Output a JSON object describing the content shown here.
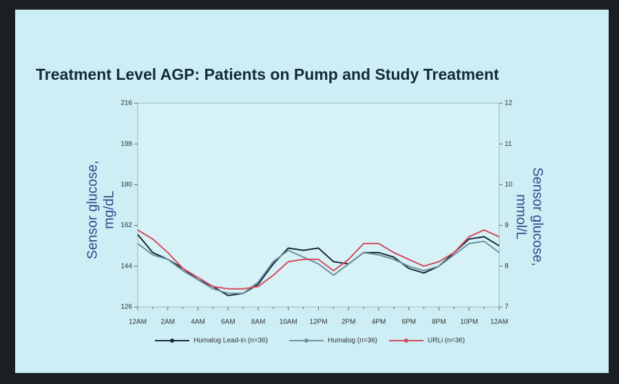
{
  "chart_data": {
    "type": "line",
    "title": "Treatment Level AGP: Patients on Pump and Study Treatment",
    "ylabel": [
      "Sensor glucose,",
      "mg/dL"
    ],
    "y2label": [
      "Sensor glucose,",
      "mmol/L"
    ],
    "categories": [
      "12AM",
      null,
      "2AM",
      null,
      "4AM",
      null,
      "6AM",
      null,
      "8AM",
      null,
      "10AM",
      null,
      "12PM",
      null,
      "2PM",
      null,
      "4PM",
      null,
      "6PM",
      null,
      "8PM",
      null,
      "10PM",
      null,
      "12AM"
    ],
    "series": [
      {
        "name": "Humalog Lead-in (n=36)",
        "color": "#16293a",
        "values": [
          158,
          150,
          147,
          143,
          138,
          135,
          131,
          132,
          136,
          145,
          152,
          151,
          152,
          146,
          145,
          150,
          150,
          148,
          143,
          141,
          144,
          150,
          156,
          157,
          153
        ]
      },
      {
        "name": "Humalog (n=36)",
        "color": "#6f8f9c",
        "values": [
          154,
          149,
          147,
          142,
          138,
          134,
          132,
          132,
          137,
          146,
          151,
          148,
          145,
          140,
          145,
          150,
          149,
          147,
          144,
          142,
          144,
          149,
          154,
          155,
          150
        ]
      },
      {
        "name": "URLi (n=36)",
        "color": "#d44a5c",
        "values": [
          160,
          156,
          150,
          143,
          139,
          135,
          134,
          134,
          135,
          140,
          146,
          147,
          147,
          142,
          147,
          154,
          154,
          150,
          147,
          144,
          146,
          150,
          157,
          160,
          157
        ]
      }
    ],
    "ylim": [
      126,
      216
    ],
    "yticks": [
      126,
      144,
      162,
      180,
      198,
      216
    ],
    "y2lim": [
      7,
      12
    ],
    "y2ticks": [
      7,
      8,
      9,
      10,
      11,
      12
    ]
  }
}
